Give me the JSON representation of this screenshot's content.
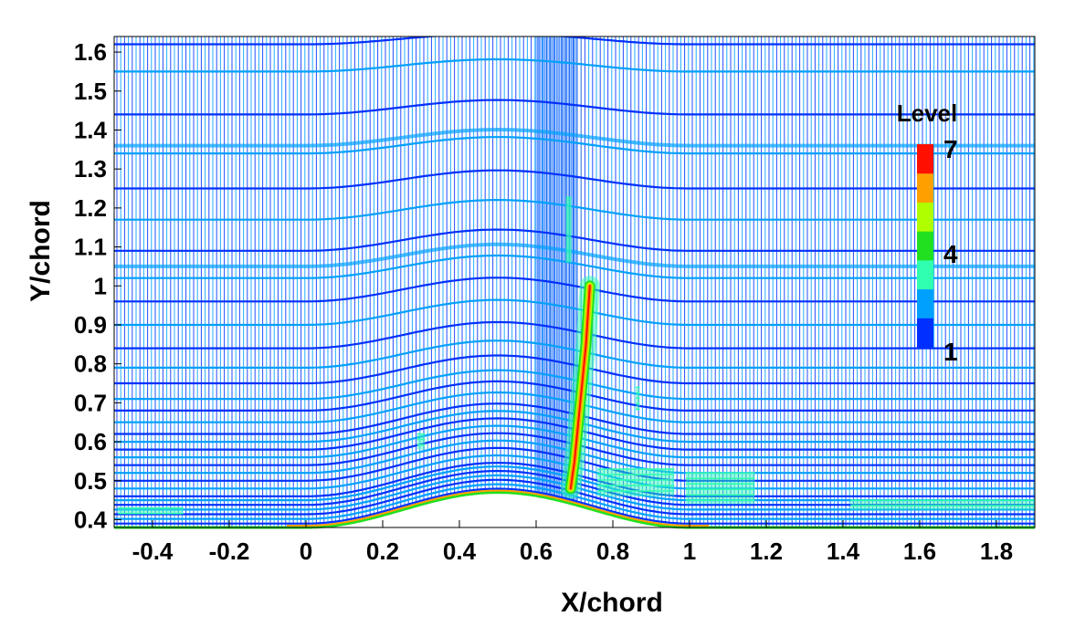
{
  "chart_data": {
    "type": "heatmap",
    "title": "",
    "xlabel": "X/chord",
    "ylabel": "Y/chord",
    "xlim": [
      -0.5,
      1.9
    ],
    "ylim": [
      0.38,
      1.64
    ],
    "x_ticks": [
      "-0.4",
      "-0.2",
      "0",
      "0.2",
      "0.4",
      "0.6",
      "0.8",
      "1",
      "1.2",
      "1.4",
      "1.6",
      "1.8"
    ],
    "x_tick_values": [
      -0.4,
      -0.2,
      0,
      0.2,
      0.4,
      0.6,
      0.8,
      1,
      1.2,
      1.4,
      1.6,
      1.8
    ],
    "y_ticks": [
      "0.4",
      "0.5",
      "0.6",
      "0.7",
      "0.8",
      "0.9",
      "1",
      "1.1",
      "1.2",
      "1.3",
      "1.4",
      "1.5",
      "1.6"
    ],
    "y_tick_values": [
      0.4,
      0.5,
      0.6,
      0.7,
      0.8,
      0.9,
      1.0,
      1.1,
      1.2,
      1.3,
      1.4,
      1.5,
      1.6
    ],
    "legend": {
      "title": "Level",
      "placement": "right",
      "labels": [
        "7",
        "4",
        "1"
      ],
      "levels": [
        1,
        2,
        3,
        4,
        5,
        6,
        7
      ],
      "colors": [
        "#0030ff",
        "#00a0ff",
        "#30ffb0",
        "#20e020",
        "#b0ff00",
        "#ffa000",
        "#ff1000"
      ]
    },
    "bump": {
      "x_start": 0.0,
      "x_end": 1.0,
      "base_y": 0.38,
      "peak_y": 0.47
    },
    "shock": {
      "x": [
        0.69,
        0.7,
        0.715,
        0.73,
        0.74
      ],
      "y": [
        0.48,
        0.55,
        0.7,
        0.85,
        1.0
      ]
    },
    "grid": true
  },
  "colors": {
    "level1": "#0030ff",
    "level2": "#00a0ff",
    "level3": "#30ffb0",
    "level4": "#20e020",
    "level5": "#b0ff00",
    "level6": "#ffa000",
    "level7": "#ff1000"
  }
}
